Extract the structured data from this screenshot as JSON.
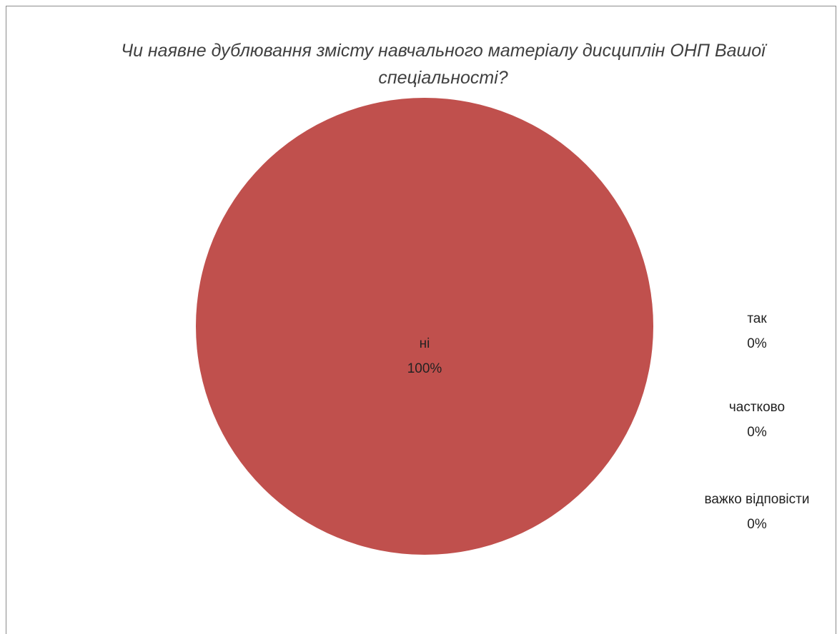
{
  "chart_data": {
    "type": "pie",
    "title": "Чи наявне дублювання змісту навчального матеріалу дисциплін ОНП Вашої спеціальності?",
    "slices": [
      {
        "label": "ні",
        "value": 100,
        "display": "100%",
        "color": "#c0504d"
      },
      {
        "label": "так",
        "value": 0,
        "display": "0%",
        "color": "#4f81bd"
      },
      {
        "label": "частково",
        "value": 0,
        "display": "0%",
        "color": "#9bbb59"
      },
      {
        "label": "важко відповісти",
        "value": 0,
        "display": "0%",
        "color": "#8064a2"
      }
    ],
    "legend": "none"
  }
}
